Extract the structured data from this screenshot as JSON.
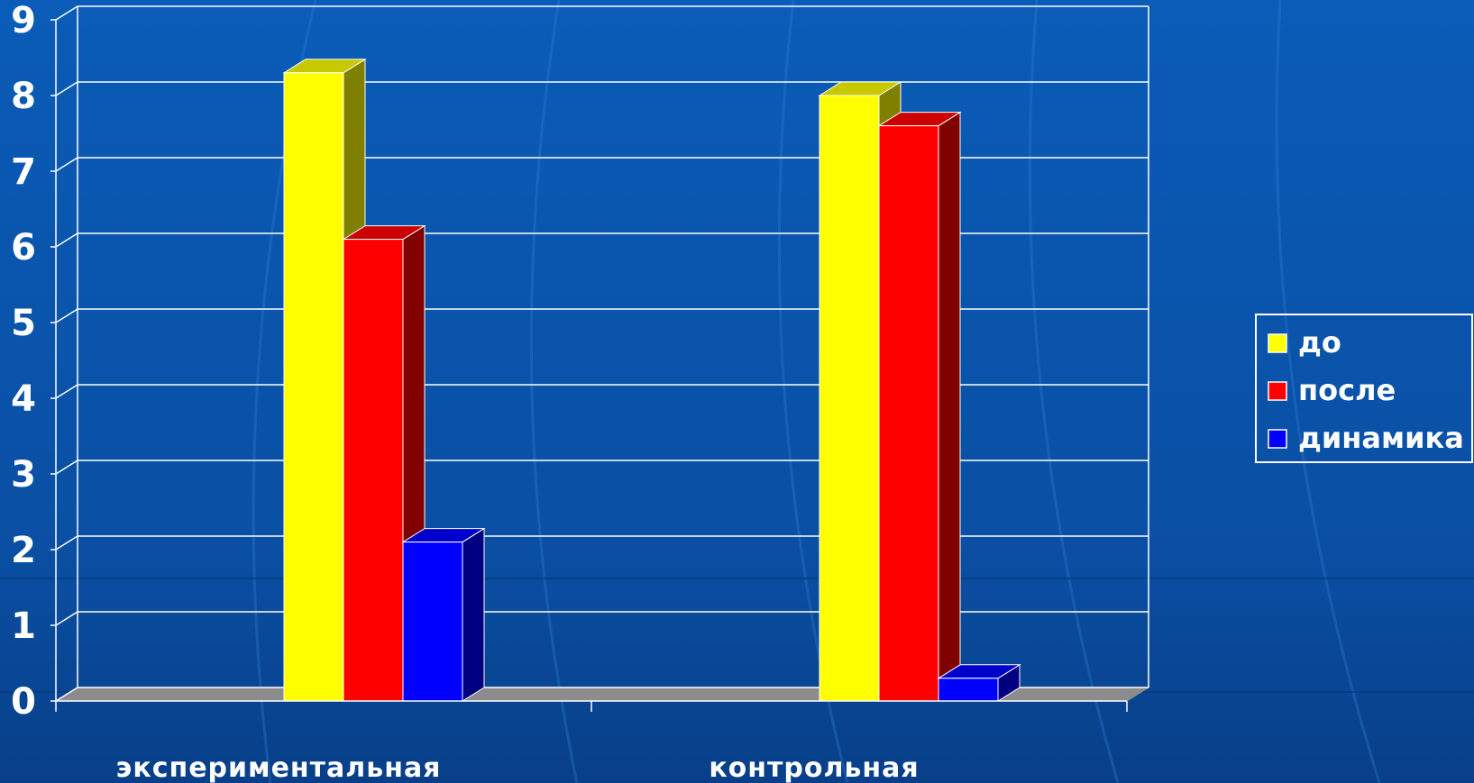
{
  "chart_data": {
    "type": "bar",
    "title": "",
    "xlabel": "",
    "ylabel": "",
    "categories": [
      "экспериментальная",
      "контрольная"
    ],
    "series": [
      {
        "name": "до",
        "values": [
          8.3,
          8.0
        ],
        "color": "#ffff00",
        "side_color": "#808000",
        "top_color": "#c8c800"
      },
      {
        "name": "после",
        "values": [
          6.1,
          7.6
        ],
        "color": "#ff0000",
        "side_color": "#800000",
        "top_color": "#cc0000"
      },
      {
        "name": "динамика",
        "values": [
          2.1,
          0.3
        ],
        "color": "#0000ff",
        "side_color": "#000080",
        "top_color": "#0000cc"
      }
    ],
    "ylim": [
      0,
      9
    ],
    "yticks": [
      "0",
      "1",
      "2",
      "3",
      "4",
      "5",
      "6",
      "7",
      "8",
      "9"
    ],
    "grid": true,
    "legend_position": "right",
    "three_d": true
  },
  "colors": {
    "background": "#0a4fa3",
    "gridline": "#ffffff",
    "floor": "#8c8c8c",
    "text": "#ffffff"
  }
}
